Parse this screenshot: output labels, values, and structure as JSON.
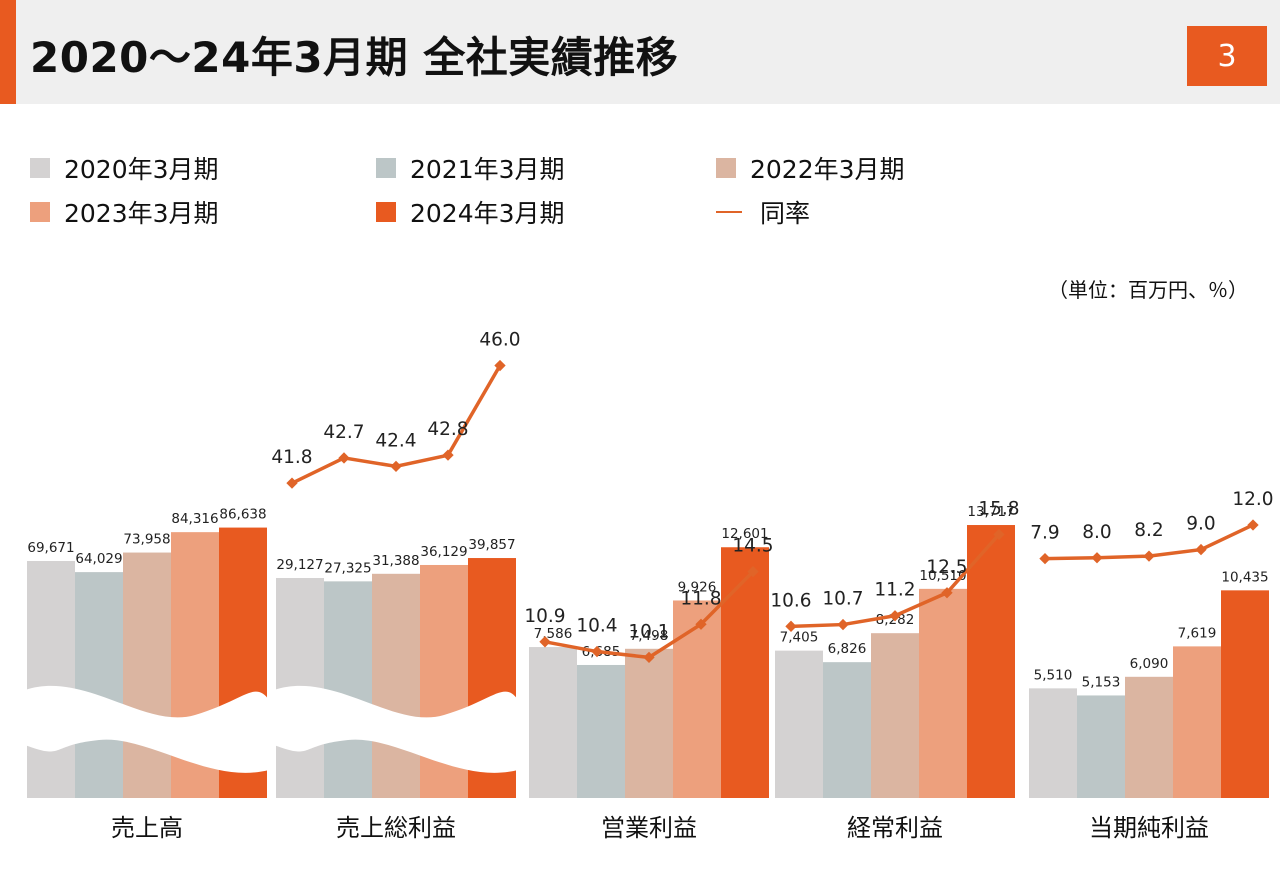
{
  "header": {
    "title": "2020～24年3月期 全社実績推移",
    "page_number": "3"
  },
  "legend": {
    "items": [
      {
        "label": "2020年3月期",
        "color": "#d4d2d2"
      },
      {
        "label": "2021年3月期",
        "color": "#bcc6c7"
      },
      {
        "label": "2022年3月期",
        "color": "#dbb5a1"
      },
      {
        "label": "2023年3月期",
        "color": "#eda07d"
      },
      {
        "label": "2024年3月期",
        "color": "#e85a20"
      }
    ],
    "line_label": "同率",
    "line_color": "#e06428"
  },
  "unit_label": "（単位：百万円、％）",
  "chart_data": {
    "type": "bar",
    "series_names": [
      "2020年3月期",
      "2021年3月期",
      "2022年3月期",
      "2023年3月期",
      "2024年3月期"
    ],
    "line_series_name": "同率",
    "groups": [
      {
        "category": "売上高",
        "values": [
          69671,
          64029,
          73958,
          84316,
          86638
        ],
        "value_labels": [
          "69,671",
          "64,029",
          "73,958",
          "84,316",
          "86,638"
        ],
        "axis_break": true,
        "rates": null,
        "rate_labels": null
      },
      {
        "category": "売上総利益",
        "values": [
          29127,
          27325,
          31388,
          36129,
          39857
        ],
        "value_labels": [
          "29,127",
          "27,325",
          "31,388",
          "36,129",
          "39,857"
        ],
        "axis_break": true,
        "rates": [
          41.8,
          42.7,
          42.4,
          42.8,
          46.0
        ],
        "rate_labels": [
          "41.8",
          "42.7",
          "42.4",
          "42.8",
          "46.0"
        ]
      },
      {
        "category": "営業利益",
        "values": [
          7586,
          6685,
          7498,
          9926,
          12601
        ],
        "value_labels": [
          "7,586",
          "6,685",
          "7,498",
          "9,926",
          "12,601"
        ],
        "axis_break": false,
        "rates": [
          10.9,
          10.4,
          10.1,
          11.8,
          14.5
        ],
        "rate_labels": [
          "10.9",
          "10.4",
          "10.1",
          "11.8",
          "14.5"
        ]
      },
      {
        "category": "経常利益",
        "values": [
          7405,
          6826,
          8282,
          10510,
          13717
        ],
        "value_labels": [
          "7,405",
          "6,826",
          "8,282",
          "10,510",
          "13,717"
        ],
        "axis_break": false,
        "rates": [
          10.6,
          10.7,
          11.2,
          12.5,
          15.8
        ],
        "rate_labels": [
          "10.6",
          "10.7",
          "11.2",
          "12.5",
          "15.8"
        ]
      },
      {
        "category": "当期純利益",
        "values": [
          5510,
          5153,
          6090,
          7619,
          10435
        ],
        "value_labels": [
          "5,510",
          "5,153",
          "6,090",
          "7,619",
          "10,435"
        ],
        "axis_break": false,
        "rates": [
          7.9,
          8.0,
          8.2,
          9.0,
          12.0
        ],
        "rate_labels": [
          "7.9",
          "8.0",
          "8.2",
          "9.0",
          "12.0"
        ]
      }
    ]
  }
}
